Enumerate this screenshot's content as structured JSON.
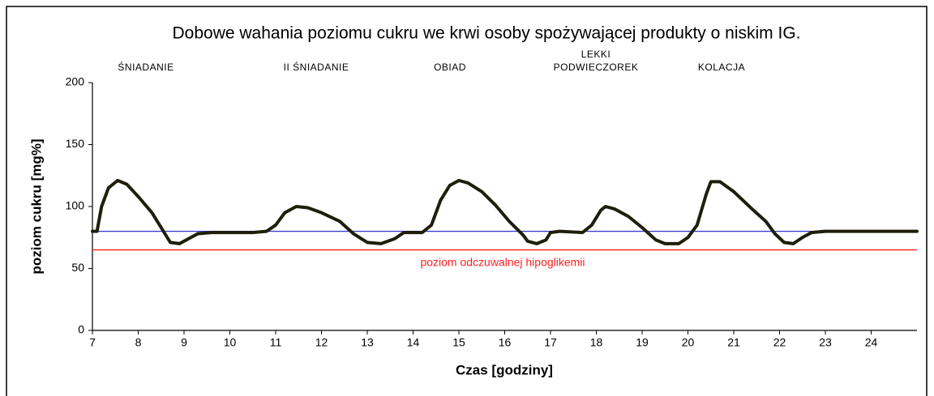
{
  "chart_data": {
    "type": "line",
    "title": "Dobowe wahania poziomu cukru we krwi osoby spożywającej produkty o niskim IG.",
    "xlabel": "Czas [godziny]",
    "ylabel": "poziom cukru [mg%]",
    "annotations": [
      [
        "ŚNIADANIE"
      ],
      [
        "II ŚNIADANIE"
      ],
      [
        "OBIAD"
      ],
      [
        "LEKKI",
        "PODWIECZOREK"
      ],
      [
        "KOLACJA"
      ]
    ],
    "reference_lines": [
      {
        "value": 80,
        "color": "#3333cc"
      },
      {
        "value": 65,
        "color": "#ff2020",
        "label": "poziom odczuwalnej hipoglikemii"
      }
    ],
    "x": [
      7.0,
      7.1,
      7.2,
      7.35,
      7.55,
      7.75,
      8.0,
      8.3,
      8.5,
      8.7,
      8.9,
      9.1,
      9.3,
      9.6,
      10.5,
      10.8,
      11.0,
      11.2,
      11.45,
      11.7,
      12.0,
      12.4,
      12.7,
      13.0,
      13.3,
      13.6,
      13.8,
      14.2,
      14.4,
      14.6,
      14.8,
      15.0,
      15.2,
      15.5,
      15.8,
      16.1,
      16.4,
      16.5,
      16.7,
      16.9,
      17.0,
      17.2,
      17.7,
      17.9,
      18.1,
      18.2,
      18.4,
      18.7,
      19.0,
      19.3,
      19.5,
      19.8,
      20.0,
      20.2,
      20.4,
      20.5,
      20.7,
      21.0,
      21.4,
      21.7,
      21.9,
      22.1,
      22.3,
      22.5,
      22.7,
      23.0,
      25.0
    ],
    "series": [
      {
        "name": "poziom cukru",
        "color": "#1e1e0a",
        "values": [
          80,
          80,
          100,
          115,
          121,
          118,
          108,
          95,
          83,
          71,
          70,
          74,
          78,
          79,
          79,
          80,
          85,
          95,
          100,
          99,
          95,
          88,
          78,
          71,
          70,
          74,
          79,
          79,
          85,
          105,
          117,
          121,
          119,
          112,
          101,
          88,
          77,
          72,
          70,
          73,
          79,
          80,
          79,
          85,
          97,
          100,
          98,
          92,
          83,
          73,
          70,
          70,
          75,
          85,
          110,
          120,
          120,
          112,
          98,
          88,
          78,
          71,
          70,
          75,
          79,
          80,
          80
        ]
      }
    ],
    "xlim": [
      7,
      25
    ],
    "xticks": [
      7,
      8,
      9,
      10,
      11,
      12,
      13,
      14,
      15,
      16,
      17,
      18,
      19,
      20,
      21,
      22,
      23,
      24
    ],
    "ylim": [
      0,
      200
    ],
    "yticks": [
      0,
      50,
      100,
      150,
      200
    ]
  }
}
